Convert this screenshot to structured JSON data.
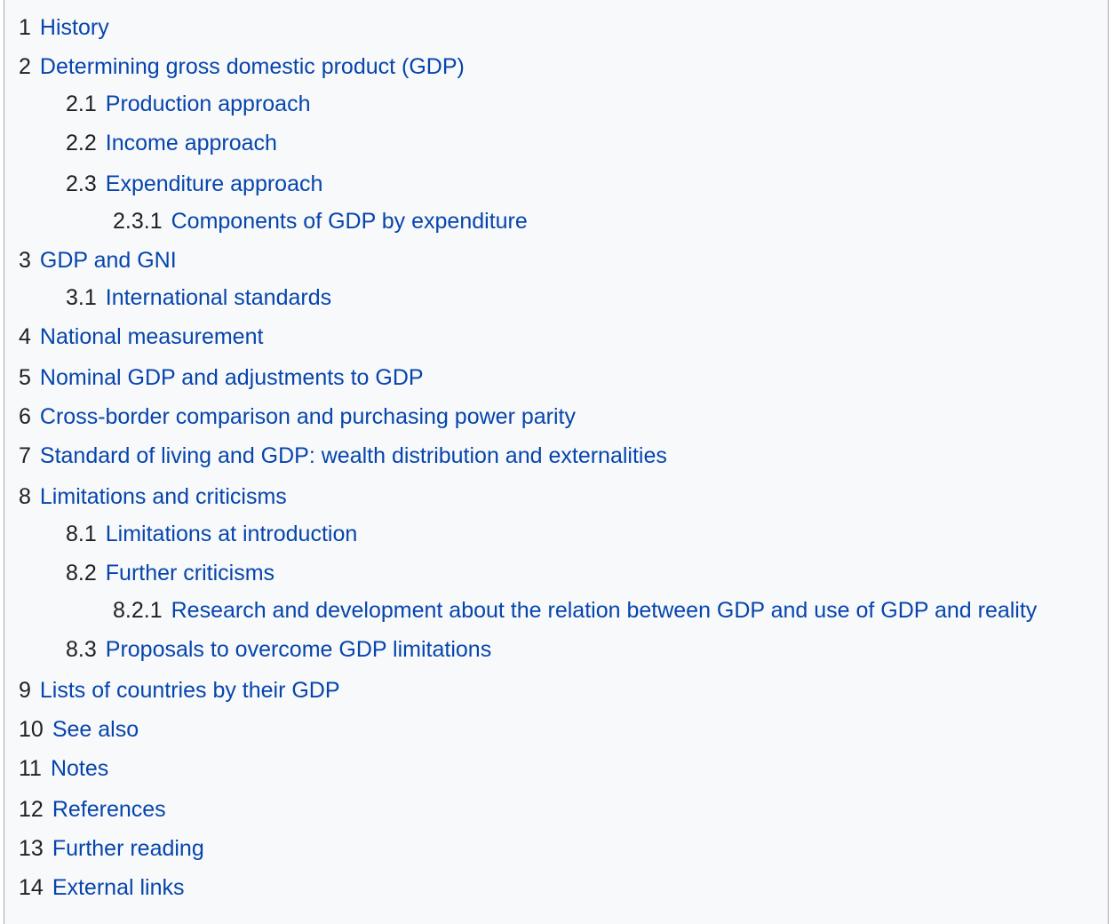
{
  "toc": {
    "items": [
      {
        "number": "1",
        "title": "History"
      },
      {
        "number": "2",
        "title": "Determining gross domestic product (GDP)"
      },
      {
        "number": "2.1",
        "title": "Production approach"
      },
      {
        "number": "2.2",
        "title": "Income approach"
      },
      {
        "number": "2.3",
        "title": "Expenditure approach"
      },
      {
        "number": "2.3.1",
        "title": "Components of GDP by expenditure"
      },
      {
        "number": "3",
        "title": "GDP and GNI"
      },
      {
        "number": "3.1",
        "title": "International standards"
      },
      {
        "number": "4",
        "title": "National measurement"
      },
      {
        "number": "5",
        "title": "Nominal GDP and adjustments to GDP"
      },
      {
        "number": "6",
        "title": "Cross-border comparison and purchasing power parity"
      },
      {
        "number": "7",
        "title": "Standard of living and GDP: wealth distribution and externalities"
      },
      {
        "number": "8",
        "title": "Limitations and criticisms"
      },
      {
        "number": "8.1",
        "title": "Limitations at introduction"
      },
      {
        "number": "8.2",
        "title": "Further criticisms"
      },
      {
        "number": "8.2.1",
        "title": "Research and development about the relation between GDP and use of GDP and reality"
      },
      {
        "number": "8.3",
        "title": "Proposals to overcome GDP limitations"
      },
      {
        "number": "9",
        "title": "Lists of countries by their GDP"
      },
      {
        "number": "10",
        "title": "See also"
      },
      {
        "number": "11",
        "title": "Notes"
      },
      {
        "number": "12",
        "title": "References"
      },
      {
        "number": "13",
        "title": "Further reading"
      },
      {
        "number": "14",
        "title": "External links"
      }
    ]
  },
  "colors": {
    "link": "#0645ad",
    "text": "#202122",
    "background": "#f8f9fa",
    "border": "#a2a9b1"
  }
}
